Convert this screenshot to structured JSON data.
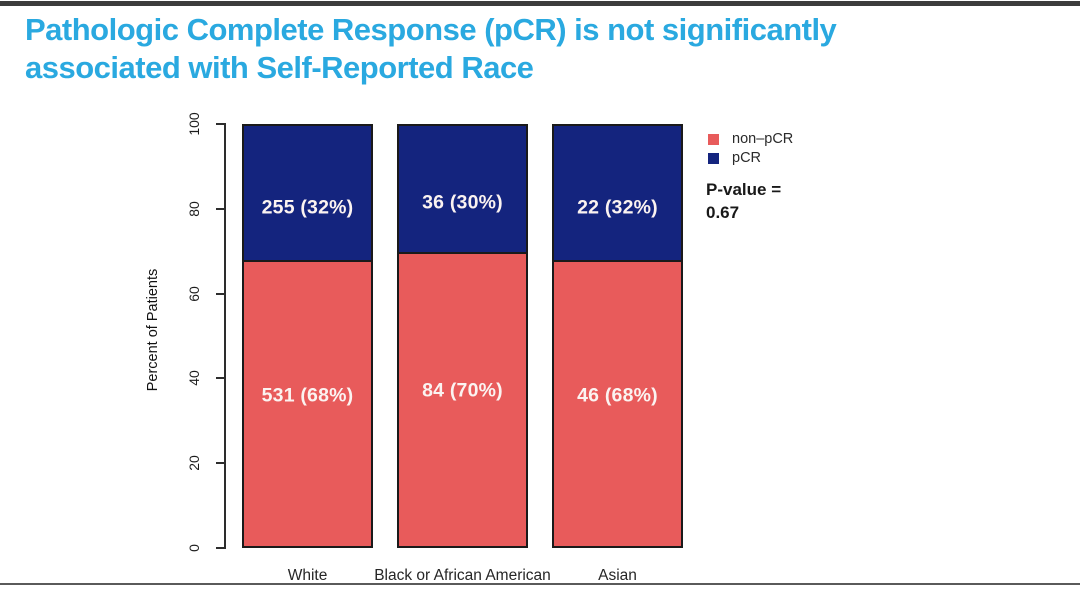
{
  "page": {
    "title_line1": "Pathologic Complete Response (pCR) is not significantly",
    "title_line2": "associated with Self-Reported Race",
    "title_color": "#2AA9E0"
  },
  "chart_data": {
    "type": "bar",
    "stacked": true,
    "title": "Pathologic Complete Response (pCR) is not significantly associated with Self-Reported Race",
    "categories": [
      "White",
      "Black or African American",
      "Asian"
    ],
    "series": [
      {
        "name": "non–pCR",
        "color": "#E85B5B",
        "counts": [
          531,
          84,
          46
        ],
        "values": [
          68,
          70,
          68
        ],
        "labels": [
          "531 (68%)",
          "84 (70%)",
          "46 (68%)"
        ]
      },
      {
        "name": "pCR",
        "color": "#14247E",
        "counts": [
          255,
          36,
          22
        ],
        "values": [
          32,
          30,
          32
        ],
        "labels": [
          "255 (32%)",
          "36 (30%)",
          "22 (32%)"
        ]
      }
    ],
    "xlabel": "",
    "ylabel": "Percent of Patients",
    "ylim": [
      0,
      100
    ],
    "yticks": [
      0,
      20,
      40,
      60,
      80,
      100
    ],
    "grid": false,
    "legend_position": "top-right",
    "annotation": {
      "label": "P-value =",
      "value": "0.67"
    }
  }
}
